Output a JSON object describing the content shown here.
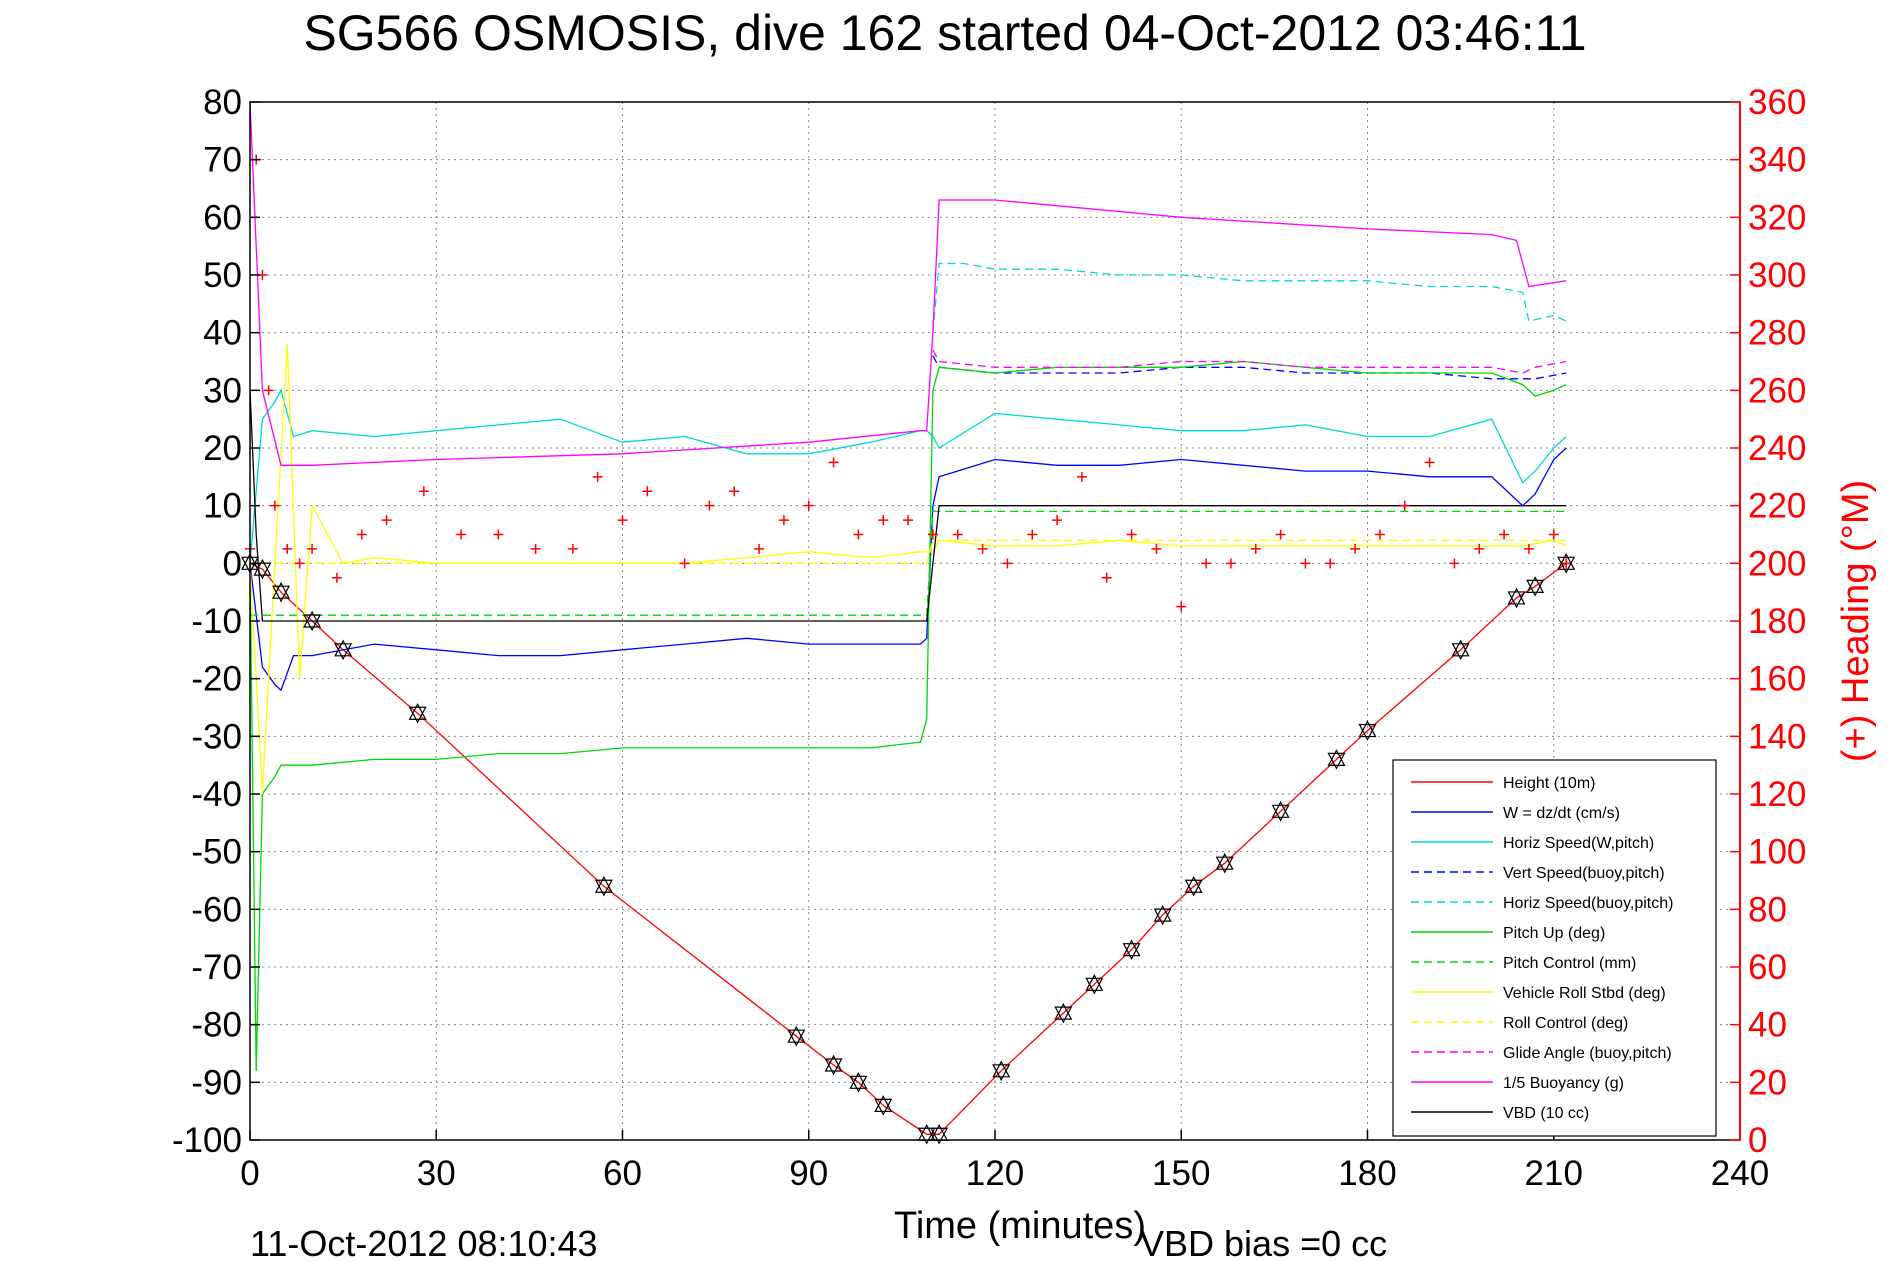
{
  "chart_data": {
    "type": "line",
    "title": "SG566 OSMOSIS, dive 162 started 04-Oct-2012 03:46:11",
    "xlabel": "Time (minutes)",
    "ylabel_right": "(+) Heading (°M)",
    "ylabel_left": "",
    "footer_left": "11-Oct-2012 08:10:43",
    "footer_right": "VBD bias =0 cc",
    "xlim": [
      0,
      240
    ],
    "ylim": [
      -100,
      80
    ],
    "ylim_right": [
      0,
      360
    ],
    "x_ticks": [
      "0",
      "30",
      "60",
      "90",
      "120",
      "150",
      "180",
      "210",
      "240"
    ],
    "y_ticks": [
      "80",
      "70",
      "60",
      "50",
      "40",
      "30",
      "20",
      "10",
      "0",
      "-10",
      "-20",
      "-30",
      "-40",
      "-50",
      "-60",
      "-70",
      "-80",
      "-90",
      "-100"
    ],
    "y_right_ticks": [
      "360",
      "340",
      "320",
      "300",
      "280",
      "260",
      "240",
      "220",
      "200",
      "180",
      "160",
      "140",
      "120",
      "100",
      "80",
      "60",
      "40",
      "20",
      "0"
    ],
    "grid": true,
    "legend_position": "bottom-right",
    "series": [
      {
        "name": "Height (10m)",
        "color": "#ff0000",
        "style": "solid",
        "axis": "left",
        "x": [
          0,
          2,
          5,
          10,
          15,
          27,
          57,
          88,
          94,
          98,
          102,
          109,
          111,
          121,
          131,
          136,
          142,
          147,
          152,
          157,
          166,
          175,
          180,
          195,
          204,
          207,
          212
        ],
        "y": [
          0,
          -1,
          -5,
          -10,
          -15,
          -26,
          -56,
          -82,
          -87,
          -90,
          -94,
          -99,
          -99,
          -88,
          -78,
          -73,
          -67,
          -61,
          -56,
          -52,
          -43,
          -34,
          -29,
          -15,
          -6,
          -4,
          0
        ]
      },
      {
        "name": "W = dz/dt (cm/s)",
        "color": "#0000ff",
        "style": "solid",
        "axis": "left",
        "x": [
          0,
          2,
          4,
          5,
          7,
          10,
          20,
          30,
          40,
          50,
          60,
          70,
          80,
          90,
          100,
          108,
          109,
          110,
          111,
          120,
          130,
          140,
          150,
          160,
          170,
          180,
          190,
          200,
          205,
          207,
          210,
          212
        ],
        "y": [
          0,
          -18,
          -21,
          -22,
          -16,
          -16,
          -14,
          -15,
          -16,
          -16,
          -15,
          -14,
          -13,
          -14,
          -14,
          -14,
          -13,
          10,
          15,
          18,
          17,
          17,
          18,
          17,
          16,
          16,
          15,
          15,
          10,
          12,
          18,
          20
        ]
      },
      {
        "name": "Horiz Speed(W,pitch)",
        "color": "#00d8d8",
        "style": "solid",
        "axis": "left",
        "x": [
          0,
          2,
          4,
          5,
          7,
          10,
          20,
          30,
          40,
          50,
          60,
          70,
          80,
          90,
          100,
          108,
          109,
          110,
          111,
          120,
          130,
          140,
          150,
          160,
          170,
          180,
          190,
          200,
          205,
          207,
          210,
          212
        ],
        "y": [
          0,
          25,
          28,
          30,
          22,
          23,
          22,
          23,
          24,
          25,
          21,
          22,
          19,
          19,
          21,
          23,
          23,
          22,
          20,
          26,
          25,
          24,
          23,
          23,
          24,
          22,
          22,
          25,
          14,
          16,
          20,
          22
        ]
      },
      {
        "name": "Vert Speed(buoy,pitch)",
        "color": "#0000ff",
        "style": "dashed",
        "axis": "left",
        "x": [
          110,
          111,
          120,
          130,
          140,
          150,
          160,
          170,
          180,
          190,
          200,
          205,
          207,
          212
        ],
        "y": [
          36,
          34,
          33,
          33,
          33,
          34,
          34,
          33,
          33,
          33,
          32,
          32,
          32,
          33
        ]
      },
      {
        "name": "Horiz Speed(buoy,pitch)",
        "color": "#00d8d8",
        "style": "dashed",
        "axis": "left",
        "x": [
          110,
          111,
          115,
          120,
          130,
          140,
          150,
          160,
          170,
          180,
          190,
          200,
          205,
          206,
          210,
          212
        ],
        "y": [
          40,
          52,
          52,
          51,
          51,
          50,
          50,
          49,
          49,
          49,
          48,
          48,
          47,
          42,
          43,
          42
        ]
      },
      {
        "name": "Pitch Up (deg)",
        "color": "#00d800",
        "style": "solid",
        "axis": "left",
        "x": [
          0,
          1,
          2,
          4,
          5,
          7,
          10,
          20,
          30,
          40,
          50,
          60,
          70,
          80,
          90,
          100,
          108,
          109,
          110,
          111,
          120,
          130,
          140,
          150,
          160,
          170,
          180,
          190,
          200,
          205,
          207,
          210,
          212
        ],
        "y": [
          0,
          -88,
          -40,
          -37,
          -35,
          -35,
          -35,
          -34,
          -34,
          -33,
          -33,
          -32,
          -32,
          -32,
          -32,
          -32,
          -31,
          -27,
          30,
          34,
          33,
          34,
          34,
          34,
          35,
          34,
          33,
          33,
          33,
          31,
          29,
          30,
          31
        ]
      },
      {
        "name": "Pitch Control (mm)",
        "color": "#00d800",
        "style": "dashed",
        "axis": "left",
        "x": [
          0,
          109,
          110,
          212
        ],
        "y": [
          -9,
          -9,
          9,
          9
        ]
      },
      {
        "name": "Vehicle Roll Stbd (deg)",
        "color": "#ffff00",
        "style": "solid",
        "axis": "left",
        "x": [
          0,
          2,
          4,
          6,
          8,
          10,
          15,
          20,
          30,
          40,
          50,
          60,
          70,
          80,
          90,
          100,
          108,
          110,
          111,
          120,
          130,
          140,
          150,
          160,
          170,
          180,
          190,
          200,
          205,
          210,
          212
        ],
        "y": [
          0,
          -40,
          0,
          38,
          -20,
          10,
          0,
          1,
          0,
          0,
          0,
          0,
          0,
          1,
          2,
          1,
          2,
          2,
          4,
          3,
          3,
          4,
          3,
          3,
          3,
          3,
          3,
          3,
          3,
          4,
          3
        ]
      },
      {
        "name": "Roll Control (deg)",
        "color": "#ffff00",
        "style": "dashed",
        "axis": "left",
        "x": [
          0,
          109,
          110,
          212
        ],
        "y": [
          0,
          0,
          4,
          4
        ]
      },
      {
        "name": "Glide Angle (buoy,pitch)",
        "color": "#ff00ff",
        "style": "dashed",
        "axis": "left",
        "x": [
          110,
          111,
          120,
          130,
          140,
          150,
          160,
          170,
          180,
          190,
          200,
          205,
          207,
          212
        ],
        "y": [
          37,
          35,
          34,
          34,
          34,
          35,
          35,
          34,
          34,
          34,
          34,
          33,
          34,
          35
        ]
      },
      {
        "name": "1/5 Buoyancy (g)",
        "color": "#ff00ff",
        "style": "solid",
        "axis": "left",
        "x": [
          0,
          2,
          5,
          10,
          30,
          60,
          90,
          108,
          109,
          110,
          111,
          120,
          150,
          180,
          200,
          204,
          206,
          212
        ],
        "y": [
          80,
          30,
          17,
          17,
          18,
          19,
          21,
          23,
          23,
          40,
          63,
          63,
          60,
          58,
          57,
          56,
          48,
          49
        ]
      },
      {
        "name": "VBD (10 cc)",
        "color": "#000000",
        "style": "solid",
        "axis": "left",
        "x": [
          0,
          1,
          2,
          3,
          109,
          111,
          212
        ],
        "y": [
          30,
          5,
          -10,
          -10,
          -10,
          10,
          10
        ]
      },
      {
        "name": "(+) Heading",
        "color": "#ff0000",
        "style": "markers",
        "axis": "right",
        "x": [
          0,
          1,
          2,
          3,
          4,
          6,
          8,
          10,
          14,
          18,
          22,
          28,
          34,
          40,
          46,
          52,
          56,
          60,
          64,
          70,
          74,
          78,
          82,
          86,
          90,
          94,
          98,
          102,
          106,
          110,
          114,
          118,
          122,
          126,
          130,
          134,
          138,
          142,
          146,
          150,
          154,
          158,
          162,
          166,
          170,
          174,
          178,
          182,
          186,
          190,
          194,
          198,
          202,
          206,
          210,
          212
        ],
        "y": [
          205,
          340,
          300,
          260,
          220,
          205,
          200,
          205,
          195,
          210,
          215,
          225,
          210,
          210,
          205,
          205,
          230,
          215,
          225,
          200,
          220,
          225,
          205,
          215,
          220,
          235,
          210,
          215,
          215,
          210,
          210,
          205,
          200,
          210,
          215,
          230,
          195,
          210,
          205,
          185,
          200,
          200,
          205,
          210,
          200,
          200,
          205,
          210,
          220,
          235,
          200,
          205,
          210,
          205,
          210,
          200
        ]
      }
    ]
  }
}
